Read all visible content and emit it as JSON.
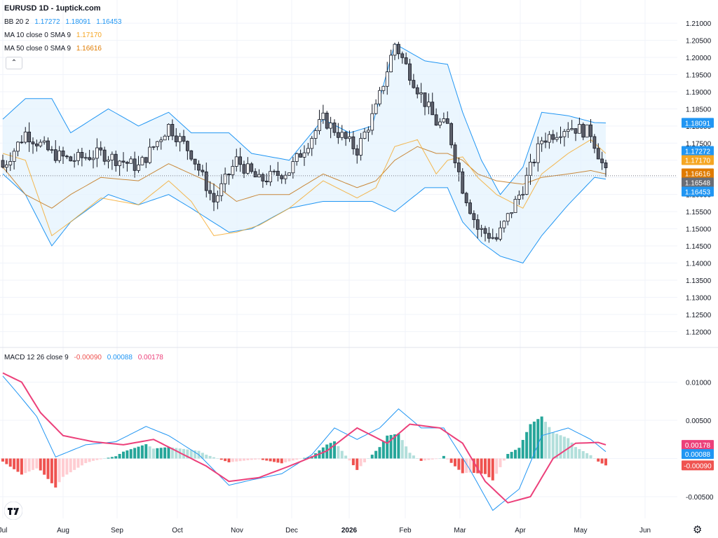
{
  "header": {
    "title": "EURUSD 1D - 1uptick.com",
    "bb": {
      "label": "BB 20 2",
      "basis": "1.17272",
      "upper": "1.18091",
      "lower": "1.16453"
    },
    "ma10": {
      "label": "MA 10 close 0 SMA 9",
      "value": "1.17170"
    },
    "ma50": {
      "label": "MA 50 close 0 SMA 9",
      "value": "1.16616"
    },
    "collapse_icon": "chevron-up-icon"
  },
  "macd_legend": {
    "label": "MACD 12 26 close 9",
    "hist": "-0.00090",
    "macd": "0.00088",
    "signal": "0.00178"
  },
  "colors": {
    "up": "#26a69a",
    "down": "#ef5350",
    "candle_body": "#5d606b",
    "bb": "#2196f3",
    "bb_fill": "#e3f2fd",
    "ma10": "#f5a623",
    "ma50": "#c8883a",
    "macd": "#2196f3",
    "signal": "#ec407a"
  },
  "chart_data": [
    {
      "type": "candlestick",
      "title": "EURUSD 1D - 1uptick.com",
      "x_labels": [
        "Jul",
        "Aug",
        "Sep",
        "Oct",
        "Nov",
        "Dec",
        "2026",
        "Feb",
        "Mar",
        "Apr",
        "May",
        "Jun"
      ],
      "y_ticks": [
        "1.21000",
        "1.20500",
        "1.20000",
        "1.19500",
        "1.19000",
        "1.18500",
        "1.18000",
        "1.17500",
        "1.17000",
        "1.16500",
        "1.16000",
        "1.15500",
        "1.15000",
        "1.14500",
        "1.14000",
        "1.13500",
        "1.13000",
        "1.12500",
        "1.12000"
      ],
      "ylim": [
        1.117,
        1.2135
      ],
      "last_price": "1.16548",
      "price_tags": [
        {
          "label": "1.18091",
          "value": 1.18091,
          "color": "#2196f3"
        },
        {
          "label": "1.17272",
          "value": 1.17272,
          "color": "#2196f3"
        },
        {
          "label": "1.17170",
          "value": 1.1717,
          "color": "#f5a623"
        },
        {
          "label": "1.16616",
          "value": 1.16616,
          "color": "#e07b00"
        },
        {
          "label": "1.16548",
          "value": 1.16548,
          "color": "#6b6e76"
        },
        {
          "label": "1.16453",
          "value": 1.16453,
          "color": "#2196f3"
        }
      ],
      "anchors": [
        [
          0,
          1.168,
          1.172,
          1.168
        ],
        [
          6,
          1.178,
          1.17,
          1.16
        ],
        [
          13,
          1.172,
          1.148,
          1.156
        ],
        [
          18,
          1.17,
          1.152,
          1.16
        ],
        [
          26,
          1.172,
          1.159,
          1.165
        ],
        [
          36,
          1.168,
          1.157,
          1.164
        ],
        [
          44,
          1.18,
          1.164,
          1.169
        ],
        [
          50,
          1.172,
          1.158,
          1.166
        ],
        [
          56,
          1.158,
          1.148,
          1.163
        ],
        [
          62,
          1.17,
          1.149,
          1.158
        ],
        [
          68,
          1.164,
          1.151,
          1.16
        ],
        [
          76,
          1.167,
          1.156,
          1.16
        ],
        [
          85,
          1.182,
          1.164,
          1.166
        ],
        [
          94,
          1.173,
          1.159,
          1.162
        ],
        [
          99,
          1.185,
          1.162,
          1.164
        ],
        [
          104,
          1.204,
          1.174,
          1.17
        ],
        [
          110,
          1.191,
          1.176,
          1.174
        ],
        [
          115,
          1.181,
          1.166,
          1.172
        ],
        [
          118,
          1.18,
          1.17,
          1.172
        ],
        [
          122,
          1.162,
          1.171,
          1.17
        ],
        [
          126,
          1.15,
          1.165,
          1.166
        ],
        [
          131,
          1.147,
          1.16,
          1.164
        ],
        [
          138,
          1.162,
          1.156,
          1.163
        ],
        [
          143,
          1.176,
          1.166,
          1.165
        ],
        [
          150,
          1.18,
          1.172,
          1.166
        ],
        [
          156,
          1.178,
          1.176,
          1.167
        ],
        [
          160,
          1.166,
          1.172,
          1.166
        ]
      ],
      "bb_anchors": [
        [
          0,
          1.182,
          1.166
        ],
        [
          6,
          1.188,
          1.16
        ],
        [
          13,
          1.188,
          1.145
        ],
        [
          18,
          1.178,
          1.152
        ],
        [
          28,
          1.185,
          1.16
        ],
        [
          36,
          1.18,
          1.157
        ],
        [
          44,
          1.184,
          1.16
        ],
        [
          50,
          1.178,
          1.156
        ],
        [
          60,
          1.178,
          1.149
        ],
        [
          66,
          1.172,
          1.15
        ],
        [
          76,
          1.17,
          1.156
        ],
        [
          85,
          1.182,
          1.158
        ],
        [
          92,
          1.178,
          1.158
        ],
        [
          98,
          1.18,
          1.158
        ],
        [
          104,
          1.204,
          1.155
        ],
        [
          112,
          1.199,
          1.162
        ],
        [
          118,
          1.198,
          1.162
        ],
        [
          122,
          1.184,
          1.152
        ],
        [
          127,
          1.17,
          1.146
        ],
        [
          132,
          1.16,
          1.142
        ],
        [
          138,
          1.168,
          1.14
        ],
        [
          143,
          1.184,
          1.148
        ],
        [
          150,
          1.183,
          1.157
        ],
        [
          157,
          1.181,
          1.165
        ],
        [
          160,
          1.1809,
          1.1645
        ]
      ]
    },
    {
      "type": "macd",
      "title": "MACD 12 26 close 9",
      "y_ticks": [
        "0.01000",
        "0.00500",
        "-0.00500"
      ],
      "ylim": [
        -0.0083,
        0.0128
      ],
      "price_tags": [
        {
          "label": "0.00178",
          "value": 0.00178,
          "color": "#ec407a"
        },
        {
          "label": "0.00088",
          "value": 0.00088,
          "color": "#2196f3"
        },
        {
          "label": "-0.00090",
          "value": -0.0009,
          "color": "#ef5350"
        }
      ],
      "macd_anchors": [
        [
          0,
          0.0108
        ],
        [
          4,
          0.0085
        ],
        [
          9,
          0.0055
        ],
        [
          14,
          0.0002
        ],
        [
          22,
          0.0018
        ],
        [
          30,
          0.0022
        ],
        [
          38,
          0.0042
        ],
        [
          44,
          0.003
        ],
        [
          52,
          0.0005
        ],
        [
          60,
          -0.0035
        ],
        [
          66,
          -0.0028
        ],
        [
          74,
          -0.002
        ],
        [
          82,
          0.0005
        ],
        [
          88,
          0.004
        ],
        [
          94,
          0.0025
        ],
        [
          100,
          0.004
        ],
        [
          105,
          0.0065
        ],
        [
          111,
          0.004
        ],
        [
          117,
          0.004
        ],
        [
          124,
          -0.0015
        ],
        [
          130,
          -0.0068
        ],
        [
          137,
          -0.004
        ],
        [
          143,
          0.003
        ],
        [
          150,
          0.004
        ],
        [
          156,
          0.0025
        ],
        [
          160,
          0.0009
        ]
      ],
      "signal_anchors": [
        [
          0,
          0.0112
        ],
        [
          5,
          0.01
        ],
        [
          10,
          0.006
        ],
        [
          16,
          0.003
        ],
        [
          24,
          0.0022
        ],
        [
          32,
          0.0018
        ],
        [
          40,
          0.0025
        ],
        [
          46,
          0.001
        ],
        [
          54,
          -0.001
        ],
        [
          60,
          -0.003
        ],
        [
          68,
          -0.0025
        ],
        [
          76,
          -0.001
        ],
        [
          86,
          0.001
        ],
        [
          94,
          0.004
        ],
        [
          102,
          0.002
        ],
        [
          108,
          0.0045
        ],
        [
          116,
          0.004
        ],
        [
          122,
          0.002
        ],
        [
          128,
          -0.003
        ],
        [
          134,
          -0.0058
        ],
        [
          140,
          -0.005
        ],
        [
          146,
          0.0
        ],
        [
          152,
          0.002
        ],
        [
          158,
          0.0021
        ],
        [
          160,
          0.0018
        ]
      ]
    }
  ]
}
